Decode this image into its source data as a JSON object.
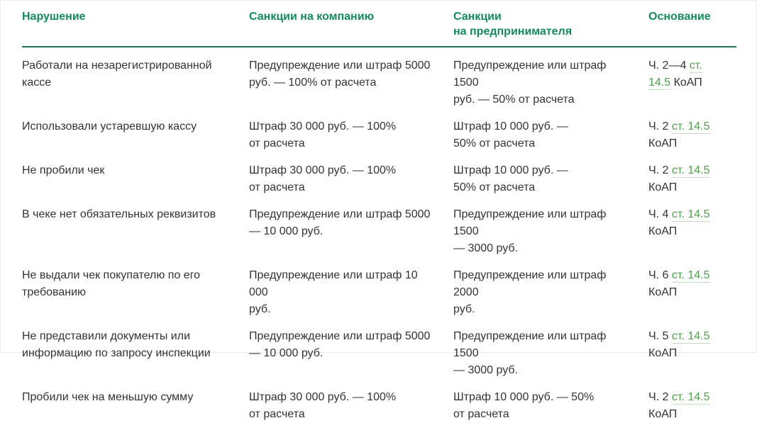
{
  "colors": {
    "header_green": "#148c5a",
    "link_green": "#4f9e4c",
    "link_underline": "#c3e0c0",
    "rule_teal": "#1f6f60",
    "text": "#333333"
  },
  "table": {
    "columns": [
      {
        "label": "Нарушение"
      },
      {
        "label": "Санкции на компанию"
      },
      {
        "label": "Санкции\nна предпринимателя"
      },
      {
        "label": "Основание"
      }
    ],
    "rows": [
      {
        "violation": "Работали на незарегистрированной\nкассе",
        "company_sanction": "Предупреждение или штраф 5000\nруб. — 100% от расчета",
        "entrepreneur_sanction": "Предупреждение или штраф 1500\nруб. — 50% от расчета",
        "basis": {
          "prefix": "Ч. 2—4 ",
          "link": "ст. 14.5",
          "suffix": " КоАП"
        }
      },
      {
        "violation": "Использовали устаревшую кассу",
        "company_sanction": "Штраф 30 000 руб. — 100%\nот расчета",
        "entrepreneur_sanction": "Штраф 10 000 руб. —\n50% от расчета",
        "basis": {
          "prefix": "Ч. 2 ",
          "link": "ст. 14.5",
          "suffix": " КоАП"
        }
      },
      {
        "violation": "Не пробили чек",
        "company_sanction": "Штраф 30 000 руб. — 100%\nот расчета",
        "entrepreneur_sanction": "Штраф 10 000 руб. —\n50% от расчета",
        "basis": {
          "prefix": "Ч. 2 ",
          "link": "ст. 14.5",
          "suffix": " КоАП"
        }
      },
      {
        "violation": "В чеке нет обязательных реквизитов",
        "company_sanction": "Предупреждение или штраф 5000\n— 10 000 руб.",
        "entrepreneur_sanction": "Предупреждение или штраф 1500\n— 3000 руб.",
        "basis": {
          "prefix": "Ч. 4 ",
          "link": "ст. 14.5",
          "suffix": " КоАП"
        }
      },
      {
        "violation": "Не выдали чек покупателю по его\nтребованию",
        "company_sanction": "Предупреждение или штраф 10 000\nруб.",
        "entrepreneur_sanction": "Предупреждение или штраф 2000\nруб.",
        "basis": {
          "prefix": "Ч. 6 ",
          "link": "ст. 14.5",
          "suffix": " КоАП"
        }
      },
      {
        "violation": "Не представили документы или\nинформацию по запросу инспекции",
        "company_sanction": "Предупреждение или штраф 5000\n— 10 000 руб.",
        "entrepreneur_sanction": "Предупреждение или штраф 1500\n— 3000 руб.",
        "basis": {
          "prefix": "Ч. 5 ",
          "link": "ст. 14.5",
          "suffix": " КоАП"
        }
      },
      {
        "violation": "Пробили чек на меньшую сумму",
        "company_sanction": "Штраф 30 000 руб. — 100%\nот расчета",
        "entrepreneur_sanction": "Штраф 10 000 руб. — 50%\nот расчета",
        "basis": {
          "prefix": "Ч. 2 ",
          "link": "ст. 14.5",
          "suffix": " КоАП"
        }
      }
    ]
  }
}
